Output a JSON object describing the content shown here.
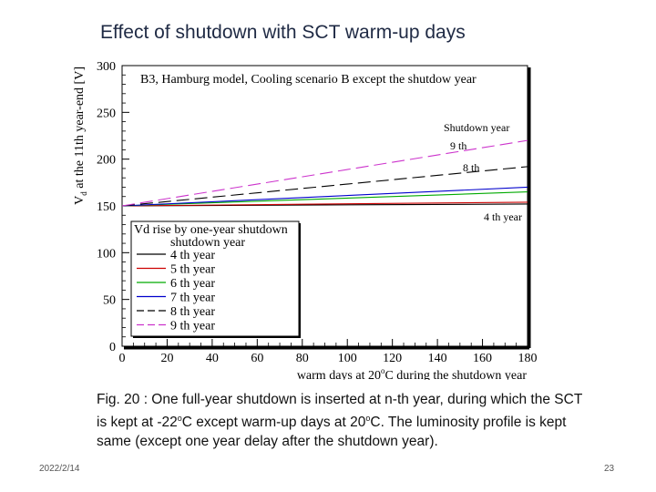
{
  "slide": {
    "title": "Effect of shutdown with SCT warm-up days",
    "caption": {
      "part1": "Fig. 20 : One full-year shutdown is inserted at n-th year, during which the SCT is kept at -22",
      "deg1": "o",
      "part2": "C except warm-up days at 20",
      "deg2": "o",
      "part3": "C. The luminosity profile is kept same (except one year delay after the shutdown year)."
    },
    "date": "2022/2/14",
    "page_number": "23"
  },
  "chart_data": {
    "type": "line",
    "inner_title": "B3,   Hamburg model, Cooling scenario B except the shutdow year",
    "xlabel": {
      "main": "warm days at 20",
      "sup": "o",
      "rest": "C during the shutdown year"
    },
    "ylabel": {
      "v": "V",
      "sub": "d",
      "rest": " at the 11th year-end [V]"
    },
    "xlim": [
      0,
      180
    ],
    "ylim": [
      0,
      300
    ],
    "x_ticks": [
      "0",
      "20",
      "40",
      "60",
      "80",
      "100",
      "120",
      "140",
      "160",
      "180"
    ],
    "y_ticks": [
      "0",
      "50",
      "100",
      "150",
      "200",
      "250",
      "300"
    ],
    "legend": {
      "title_line1": "Vd rise by one-year shutdown",
      "title_line2": "shutdown year",
      "placement": "left-middle"
    },
    "annotations": {
      "shutdown_year": "Shutdown year",
      "th9": "9 th",
      "th8": "8 th",
      "th4": "4 th year"
    },
    "series": [
      {
        "name": "4 th year",
        "color": "#000000",
        "dash": "solid",
        "x": [
          0,
          180
        ],
        "values": [
          150,
          152
        ]
      },
      {
        "name": "5 th year",
        "color": "#cc0000",
        "dash": "solid",
        "x": [
          0,
          180
        ],
        "values": [
          150,
          154
        ]
      },
      {
        "name": "6 th year",
        "color": "#00aa00",
        "dash": "solid",
        "x": [
          0,
          180
        ],
        "values": [
          150,
          165
        ]
      },
      {
        "name": "7 th year",
        "color": "#0000cc",
        "dash": "solid",
        "x": [
          0,
          180
        ],
        "values": [
          150,
          170
        ]
      },
      {
        "name": "8 th year",
        "color": "#000000",
        "dash": "dashed",
        "x": [
          0,
          180
        ],
        "values": [
          150,
          192
        ]
      },
      {
        "name": "9 th year",
        "color": "#cc33cc",
        "dash": "dashed",
        "x": [
          0,
          180
        ],
        "values": [
          150,
          220
        ]
      }
    ]
  }
}
